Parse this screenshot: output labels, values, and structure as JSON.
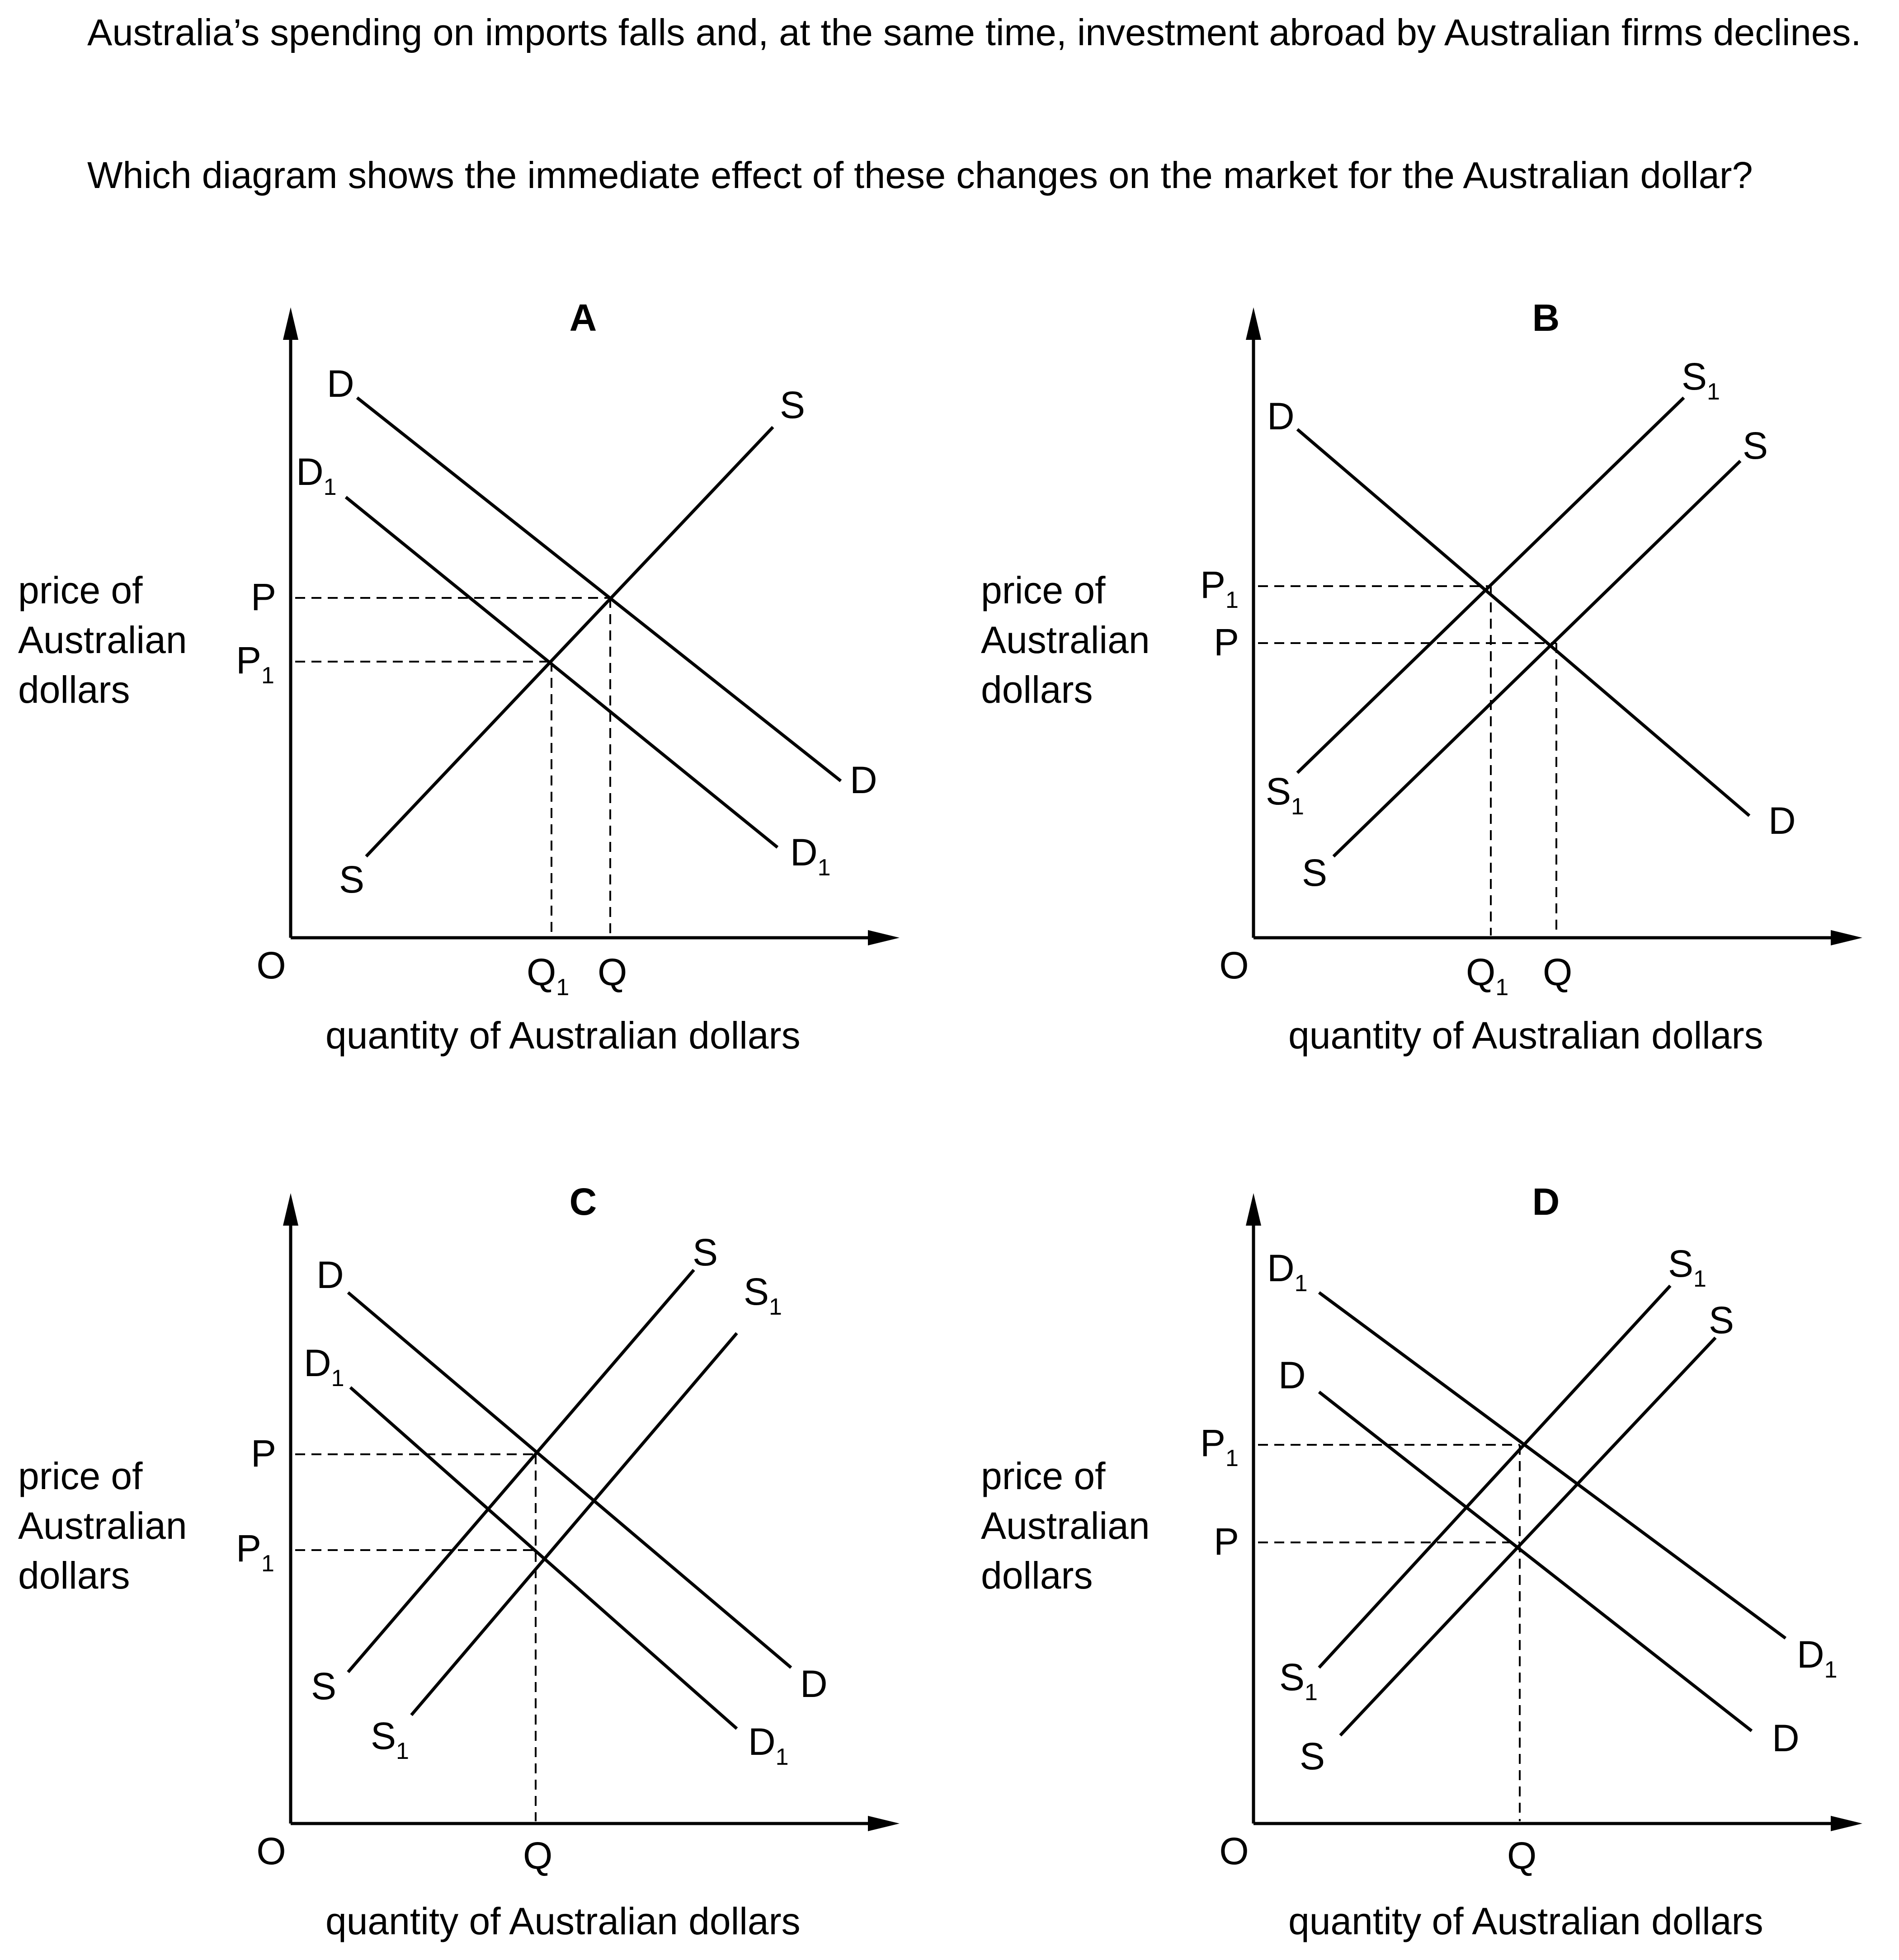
{
  "question": {
    "line1": "Australia’s spending on imports falls and, at the same time, investment abroad by Australian firms declines.",
    "line2": "Which diagram shows the immediate effect of these changes on the market for the Australian dollar?"
  },
  "diagrams": [
    {
      "option": "A",
      "ylabel": [
        "price of",
        "Australian",
        "dollars"
      ],
      "xlabel": "quantity of Australian dollars",
      "origin": "O",
      "curves": [
        {
          "type": "demand",
          "label_start": "D",
          "label_end": "D"
        },
        {
          "type": "demand",
          "label_start": "D",
          "label_end": "D",
          "subscript": "1"
        },
        {
          "type": "supply",
          "label_start": "S",
          "label_end": "S"
        }
      ],
      "price_labels": [
        {
          "text": "P",
          "sub": ""
        },
        {
          "text": "P",
          "sub": "1"
        }
      ],
      "quantity_labels": [
        {
          "text": "Q",
          "sub": "1"
        },
        {
          "text": "Q",
          "sub": ""
        }
      ]
    },
    {
      "option": "B",
      "ylabel": [
        "price of",
        "Australian",
        "dollars"
      ],
      "xlabel": "quantity of Australian dollars",
      "origin": "O",
      "curves": [
        {
          "type": "demand",
          "label_start": "D",
          "label_end": "D"
        },
        {
          "type": "supply",
          "label_start": "S",
          "label_end": "S",
          "subscript": "1"
        },
        {
          "type": "supply",
          "label_start": "S",
          "label_end": "S"
        }
      ],
      "price_labels": [
        {
          "text": "P",
          "sub": "1"
        },
        {
          "text": "P",
          "sub": ""
        }
      ],
      "quantity_labels": [
        {
          "text": "Q",
          "sub": "1"
        },
        {
          "text": "Q",
          "sub": ""
        }
      ]
    },
    {
      "option": "C",
      "ylabel": [
        "price of",
        "Australian",
        "dollars"
      ],
      "xlabel": "quantity of Australian dollars",
      "origin": "O",
      "curves": [
        {
          "type": "demand",
          "label_start": "D",
          "label_end": "D"
        },
        {
          "type": "demand",
          "label_start": "D",
          "label_end": "D",
          "subscript": "1"
        },
        {
          "type": "supply",
          "label_start": "S",
          "label_end": "S"
        },
        {
          "type": "supply",
          "label_start": "S",
          "label_end": "S",
          "subscript": "1"
        }
      ],
      "price_labels": [
        {
          "text": "P",
          "sub": ""
        },
        {
          "text": "P",
          "sub": "1"
        }
      ],
      "quantity_labels": [
        {
          "text": "Q",
          "sub": ""
        }
      ]
    },
    {
      "option": "D",
      "ylabel": [
        "price of",
        "Australian",
        "dollars"
      ],
      "xlabel": "quantity of Australian dollars",
      "origin": "O",
      "curves": [
        {
          "type": "demand",
          "label_start": "D",
          "label_end": "D",
          "subscript": "1"
        },
        {
          "type": "demand",
          "label_start": "D",
          "label_end": "D"
        },
        {
          "type": "supply",
          "label_start": "S",
          "label_end": "S",
          "subscript": "1"
        },
        {
          "type": "supply",
          "label_start": "S",
          "label_end": "S"
        }
      ],
      "price_labels": [
        {
          "text": "P",
          "sub": "1"
        },
        {
          "text": "P",
          "sub": ""
        }
      ],
      "quantity_labels": [
        {
          "text": "Q",
          "sub": ""
        }
      ]
    }
  ]
}
